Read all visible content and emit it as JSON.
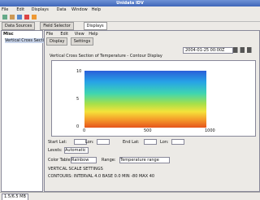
{
  "window": {
    "title": "Unidata IDV"
  },
  "menu": [
    "File",
    "Edit",
    "Displays",
    "Data",
    "Window",
    "Help"
  ],
  "tabs": [
    "Data Sources",
    "Field Selector",
    "Displays"
  ],
  "left": {
    "header": "Misc",
    "items": [
      "Vertical Cross Section"
    ]
  },
  "view": {
    "menu": [
      "File",
      "Edit",
      "View",
      "Help"
    ],
    "tabs": [
      "Display",
      "Settings"
    ],
    "time": "2004-01-25 00:00Z"
  },
  "plot": {
    "title": "Vertical Cross Section of Temperature - Contour Display",
    "y_labels": [
      "10",
      "5",
      "0"
    ],
    "x_labels": [
      "0",
      "500",
      "1000"
    ]
  },
  "controls": {
    "transect": [
      "Start Lat:",
      "Lon:",
      "End Lat:",
      "Lon:"
    ],
    "levels_label": "Levels:",
    "levels_value": "Automatic",
    "color_label": "Color Table:",
    "color_value": "Rainbow",
    "range_label": "Range:",
    "range_value": "Temperature range",
    "line1": "VERTICAL SCALE SETTINGS",
    "line2": "CONTOURS: INTERVAL 4.0  BASE 0.0  MIN -80  MAX 40"
  },
  "status": "1.5/6.5 MB"
}
